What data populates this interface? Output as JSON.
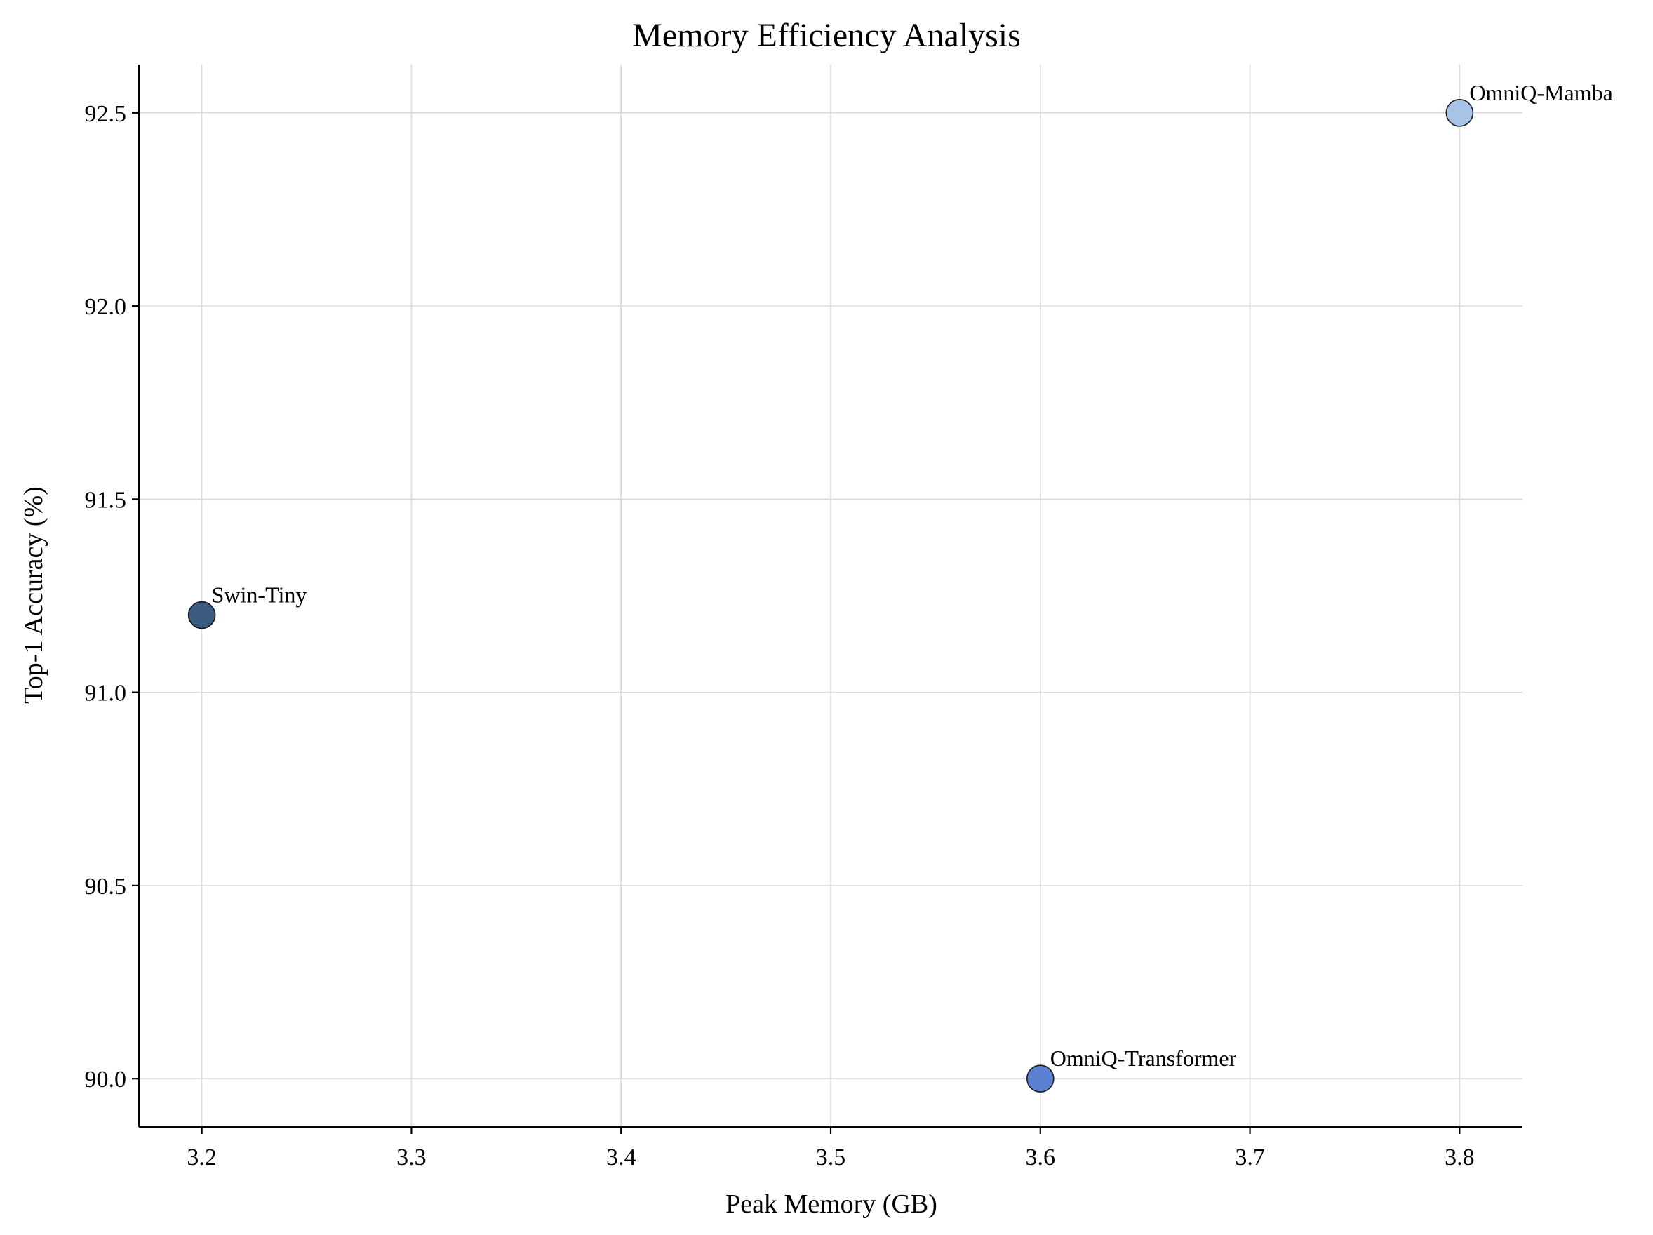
{
  "chart_data": {
    "type": "scatter",
    "title": "Memory Efficiency Analysis",
    "xlabel": "Peak Memory (GB)",
    "ylabel": "Top-1 Accuracy (%)",
    "xlim": [
      3.17,
      3.83
    ],
    "ylim": [
      89.875,
      92.625
    ],
    "xticks": [
      3.2,
      3.3,
      3.4,
      3.5,
      3.6,
      3.7,
      3.8
    ],
    "xtick_labels": [
      "3.2",
      "3.3",
      "3.4",
      "3.5",
      "3.6",
      "3.7",
      "3.8"
    ],
    "yticks": [
      90.0,
      90.5,
      91.0,
      91.5,
      92.0,
      92.5
    ],
    "ytick_labels": [
      "90.0",
      "90.5",
      "91.0",
      "91.5",
      "92.0",
      "92.5"
    ],
    "grid": true,
    "points": [
      {
        "label": "Swin-Tiny",
        "x": 3.2,
        "y": 91.2,
        "color": "#3b5b80"
      },
      {
        "label": "OmniQ-Transformer",
        "x": 3.6,
        "y": 90.0,
        "color": "#5b7fd1"
      },
      {
        "label": "OmniQ-Mamba",
        "x": 3.8,
        "y": 92.5,
        "color": "#a7c4e8"
      }
    ]
  }
}
